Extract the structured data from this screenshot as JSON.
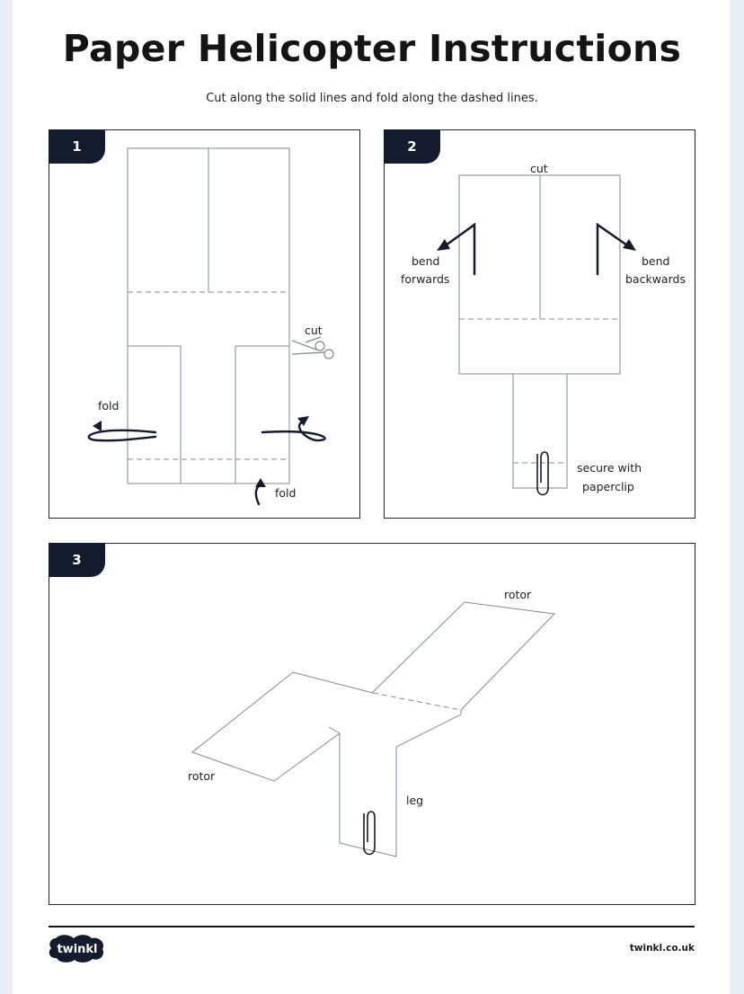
{
  "header": {
    "title": "Paper Helicopter Instructions",
    "subtitle": "Cut along the solid lines and fold along the dashed lines."
  },
  "steps": [
    {
      "number": "1",
      "labels": {
        "cut": "cut",
        "fold_left": "fold",
        "fold_bottom": "fold"
      }
    },
    {
      "number": "2",
      "labels": {
        "cut": "cut",
        "bend_left_1": "bend",
        "bend_left_2": "forwards",
        "bend_right_1": "bend",
        "bend_right_2": "backwards",
        "secure_1": "secure with",
        "secure_2": "paperclip"
      }
    },
    {
      "number": "3",
      "labels": {
        "rotor_top": "rotor",
        "rotor_left": "rotor",
        "leg": "leg"
      }
    }
  ],
  "footer": {
    "logo": "twinkl",
    "site": "twinkl.co.uk"
  },
  "colors": {
    "tab": "#141b2c",
    "line": "#7d8e8e",
    "ink": "#141414"
  }
}
